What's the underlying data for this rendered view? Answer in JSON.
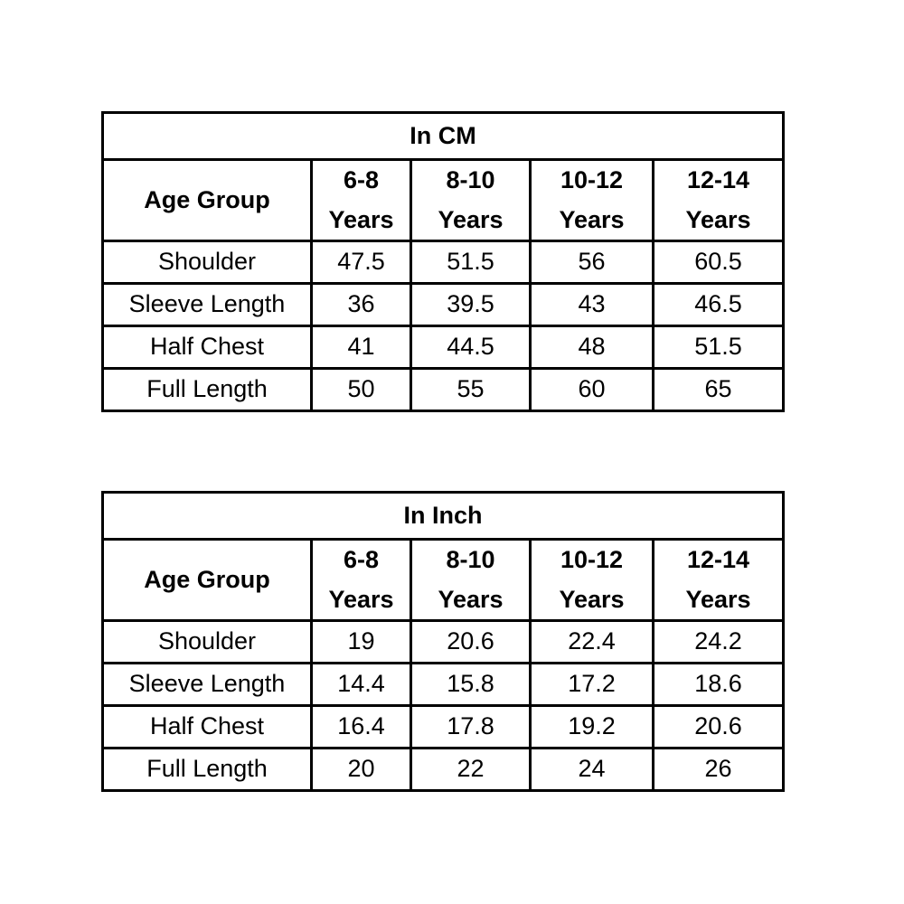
{
  "chart_data": [
    {
      "type": "table",
      "title": "In CM",
      "row_header": "Age Group",
      "columns": [
        "6-8 Years",
        "8-10 Years",
        "10-12 Years",
        "12-14 Years"
      ],
      "rows": [
        {
          "label": "Shoulder",
          "values": [
            "47.5",
            "51.5",
            "56",
            "60.5"
          ]
        },
        {
          "label": "Sleeve Length",
          "values": [
            "36",
            "39.5",
            "43",
            "46.5"
          ]
        },
        {
          "label": "Half Chest",
          "values": [
            "41",
            "44.5",
            "48",
            "51.5"
          ]
        },
        {
          "label": "Full Length",
          "values": [
            "50",
            "55",
            "60",
            "65"
          ]
        }
      ]
    },
    {
      "type": "table",
      "title": "In Inch",
      "row_header": "Age Group",
      "columns": [
        "6-8 Years",
        "8-10 Years",
        "10-12 Years",
        "12-14 Years"
      ],
      "rows": [
        {
          "label": "Shoulder",
          "values": [
            "19",
            "20.6",
            "22.4",
            "24.2"
          ]
        },
        {
          "label": "Sleeve Length",
          "values": [
            "14.4",
            "15.8",
            "17.2",
            "18.6"
          ]
        },
        {
          "label": "Half Chest",
          "values": [
            "16.4",
            "17.8",
            "19.2",
            "20.6"
          ]
        },
        {
          "label": "Full Length",
          "values": [
            "20",
            "22",
            "24",
            "26"
          ]
        }
      ]
    }
  ],
  "style": {
    "border_color": "#000000",
    "text_color": "#000000",
    "background_color": "#ffffff"
  }
}
